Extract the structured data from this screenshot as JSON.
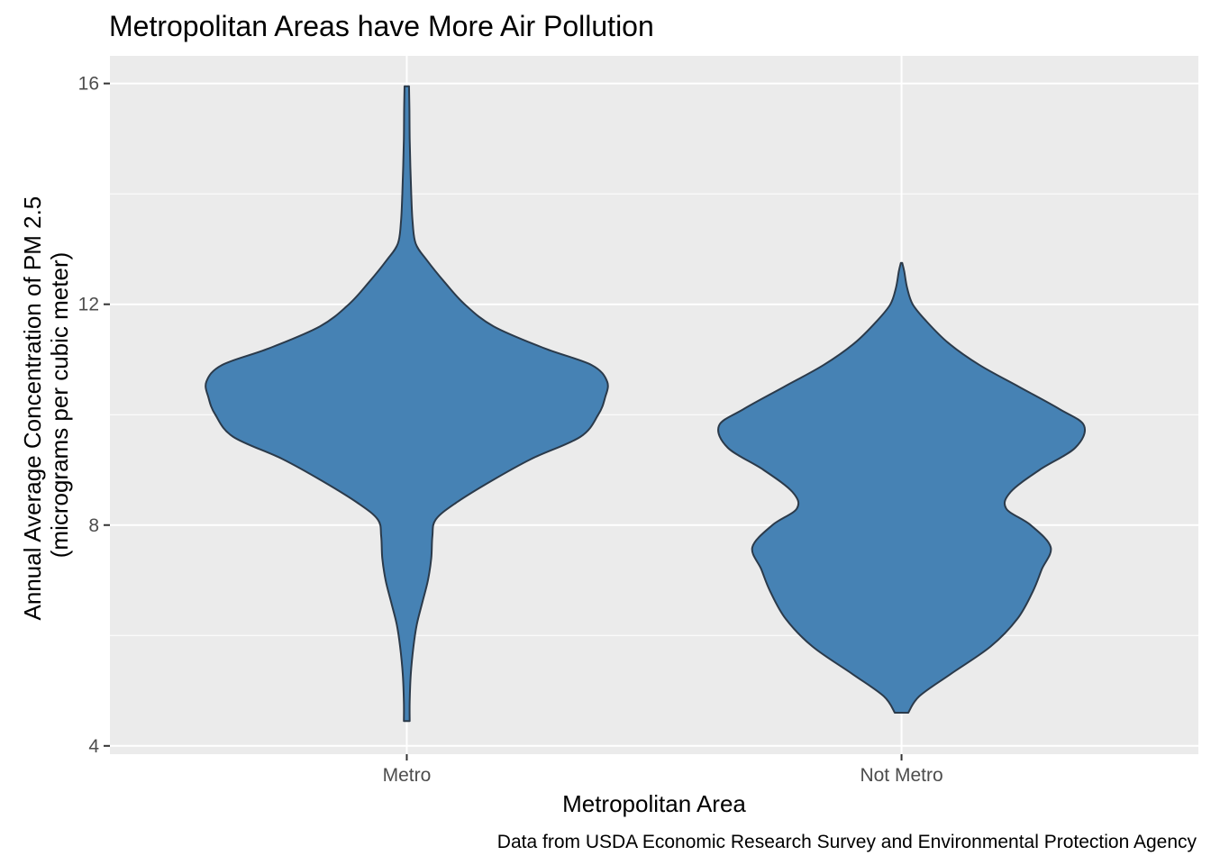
{
  "chart_data": {
    "type": "violin",
    "title": "Metropolitan Areas have More Air Pollution",
    "xlabel": "Metropolitan Area",
    "ylabel_line1": "Annual Average Concentration of PM 2.5",
    "ylabel_line2": "(micrograms per cubic meter)",
    "caption": "Data from USDA Economic Research Survey and Environmental Protection Agency",
    "categories": [
      "Metro",
      "Not Metro"
    ],
    "y_ticks": [
      4,
      8,
      12,
      16
    ],
    "ylim": [
      3.85,
      16.5
    ],
    "grid": true,
    "colors": {
      "fill": "#4682b4",
      "outline": "#2b3a4a",
      "panel": "#ebebeb",
      "grid": "#ffffff",
      "tick_text": "#4d4d4d"
    },
    "series": [
      {
        "category": "Metro",
        "min": 4.45,
        "max": 15.95,
        "profile": [
          [
            4.45,
            0.013
          ],
          [
            4.8,
            0.013
          ],
          [
            5.3,
            0.018
          ],
          [
            5.8,
            0.03
          ],
          [
            6.2,
            0.045
          ],
          [
            6.6,
            0.07
          ],
          [
            7.0,
            0.095
          ],
          [
            7.4,
            0.11
          ],
          [
            7.8,
            0.115
          ],
          [
            8.1,
            0.13
          ],
          [
            8.4,
            0.22
          ],
          [
            8.8,
            0.38
          ],
          [
            9.2,
            0.56
          ],
          [
            9.6,
            0.78
          ],
          [
            10.0,
            0.86
          ],
          [
            10.3,
            0.89
          ],
          [
            10.6,
            0.9
          ],
          [
            10.9,
            0.83
          ],
          [
            11.2,
            0.62
          ],
          [
            11.6,
            0.39
          ],
          [
            12.0,
            0.26
          ],
          [
            12.4,
            0.17
          ],
          [
            12.8,
            0.09
          ],
          [
            13.1,
            0.04
          ],
          [
            13.5,
            0.026
          ],
          [
            14.0,
            0.02
          ],
          [
            14.5,
            0.016
          ],
          [
            15.0,
            0.013
          ],
          [
            15.5,
            0.012
          ],
          [
            15.95,
            0.01
          ]
        ]
      },
      {
        "category": "Not Metro",
        "min": 4.6,
        "max": 12.75,
        "profile": [
          [
            4.6,
            0.03
          ],
          [
            4.9,
            0.08
          ],
          [
            5.3,
            0.22
          ],
          [
            5.8,
            0.4
          ],
          [
            6.3,
            0.52
          ],
          [
            6.8,
            0.59
          ],
          [
            7.2,
            0.63
          ],
          [
            7.6,
            0.67
          ],
          [
            8.0,
            0.58
          ],
          [
            8.3,
            0.47
          ],
          [
            8.6,
            0.49
          ],
          [
            9.0,
            0.62
          ],
          [
            9.4,
            0.78
          ],
          [
            9.8,
            0.82
          ],
          [
            10.1,
            0.71
          ],
          [
            10.5,
            0.53
          ],
          [
            10.9,
            0.35
          ],
          [
            11.3,
            0.21
          ],
          [
            11.7,
            0.11
          ],
          [
            12.0,
            0.05
          ],
          [
            12.3,
            0.025
          ],
          [
            12.6,
            0.012
          ],
          [
            12.75,
            0.003
          ]
        ]
      }
    ]
  }
}
